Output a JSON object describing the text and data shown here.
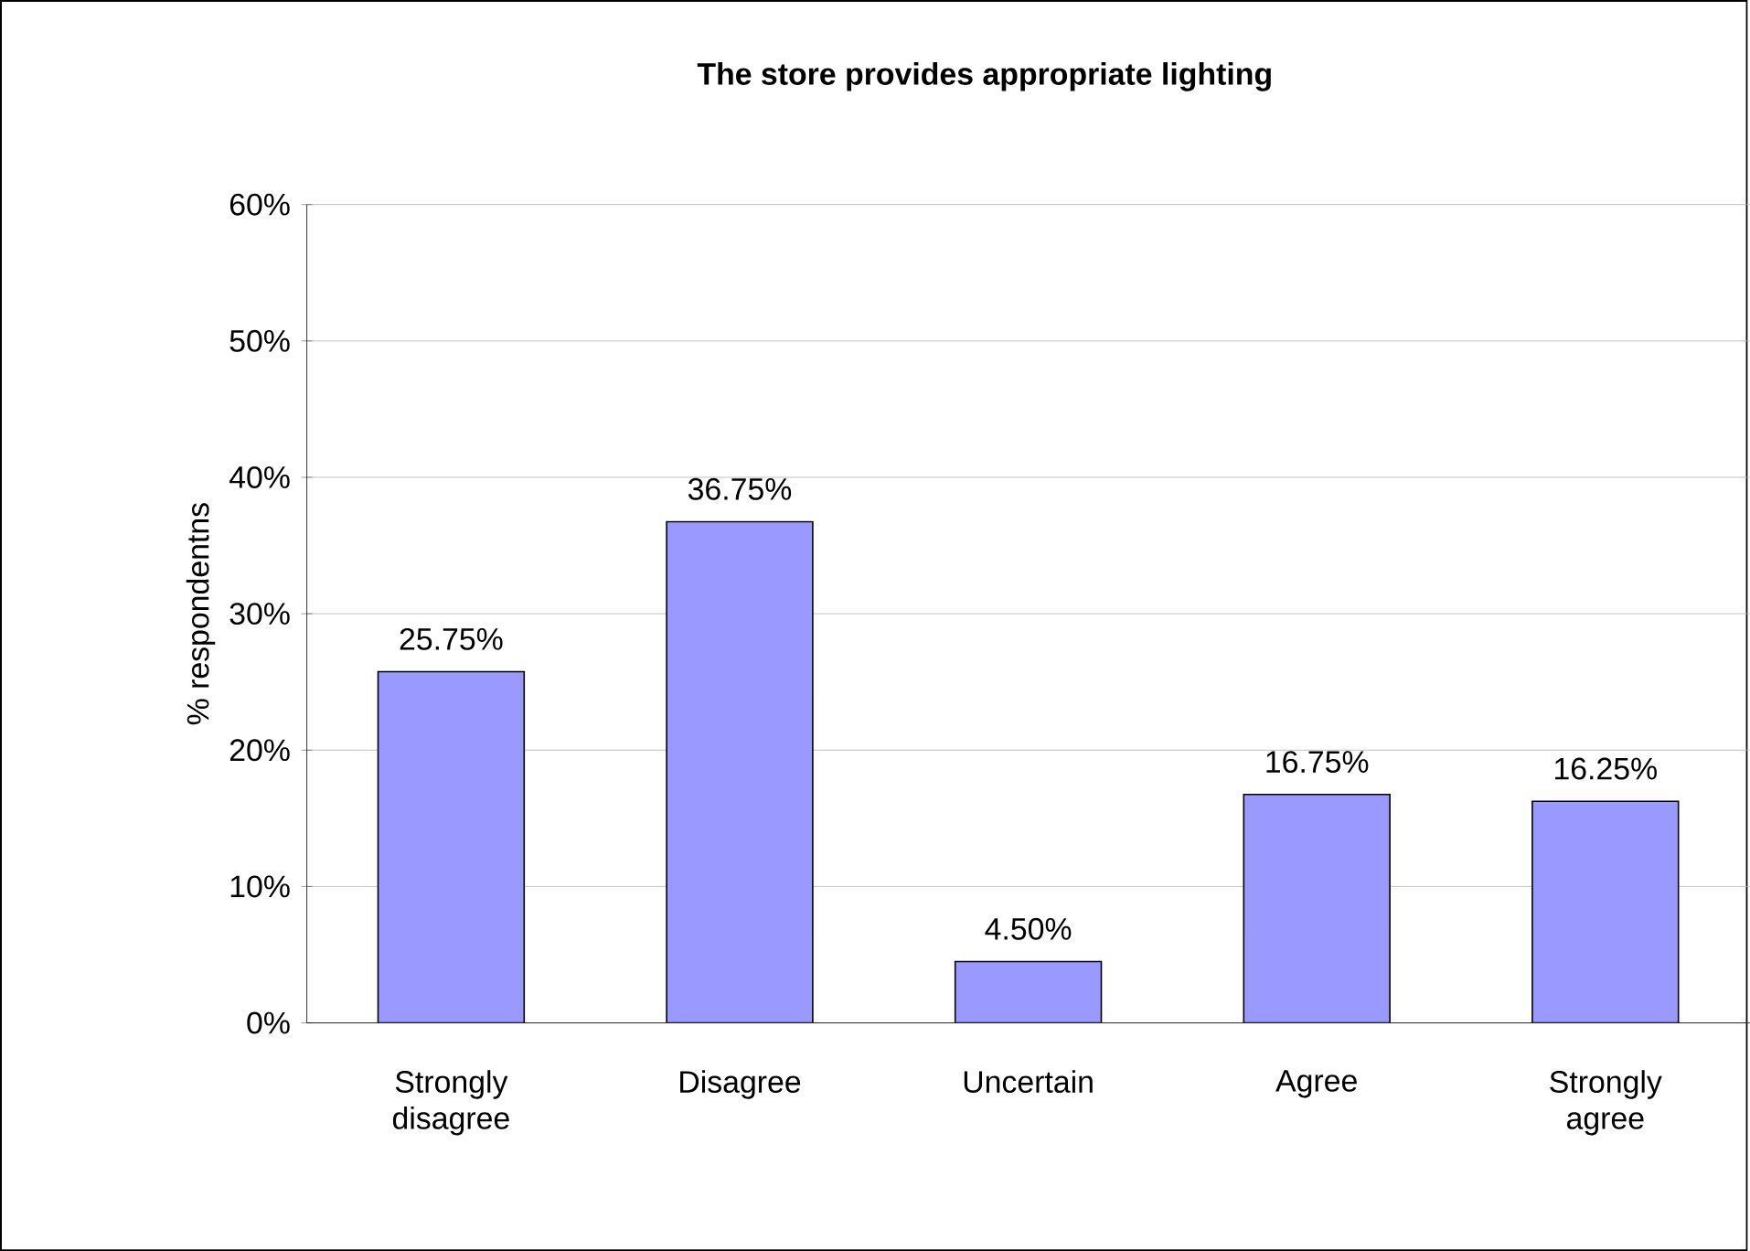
{
  "chart_data": {
    "type": "bar",
    "title": "The store provides appropriate lighting",
    "ylabel": "% respondentns",
    "categories": [
      "Strongly disagree",
      "Disagree",
      "Uncertain",
      "Agree",
      "Strongly agree"
    ],
    "values": [
      25.75,
      36.75,
      4.5,
      16.75,
      16.25
    ],
    "value_labels": [
      "25.75%",
      "36.75%",
      "4.50%",
      "16.75%",
      "16.25%"
    ],
    "color": "#9999ff",
    "ylim": [
      0,
      60
    ],
    "yticks": [
      {
        "value": 0,
        "label": "0%"
      },
      {
        "value": 10,
        "label": "10%"
      },
      {
        "value": 20,
        "label": "20%"
      },
      {
        "value": 30,
        "label": "30%"
      },
      {
        "value": 40,
        "label": "40%"
      },
      {
        "value": 50,
        "label": "50%"
      },
      {
        "value": 60,
        "label": "60%"
      }
    ],
    "grid": "y"
  }
}
